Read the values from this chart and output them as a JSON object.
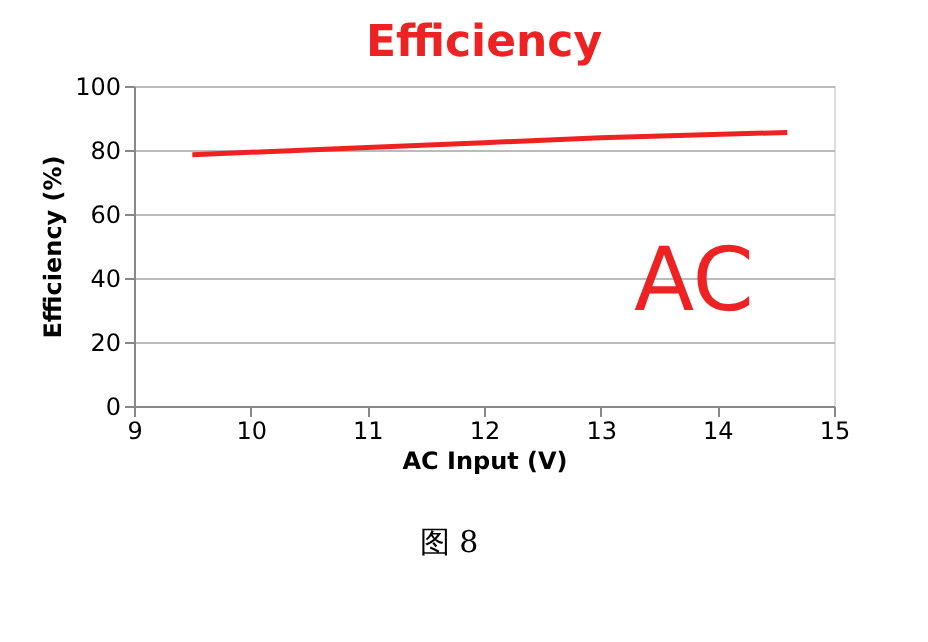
{
  "chart_data": {
    "type": "line",
    "title": "Efficiency",
    "xlabel": "AC Input (V)",
    "ylabel": "Efficiency (%)",
    "series": [
      {
        "color": "#ee2222",
        "x": [
          9.5,
          11,
          12,
          13,
          14.6
        ],
        "values": [
          78.5,
          80.8,
          82.3,
          83.8,
          85.5
        ]
      }
    ],
    "xlim": [
      9,
      15
    ],
    "xticks": [
      9,
      10,
      11,
      12,
      13,
      14,
      15
    ],
    "ylim": [
      0,
      100
    ],
    "yticks": [
      0,
      20,
      40,
      60,
      80,
      100
    ],
    "grid": "y",
    "marker": "none",
    "line_style": "solid",
    "annotations": [
      "AC",
      "图 8"
    ]
  }
}
